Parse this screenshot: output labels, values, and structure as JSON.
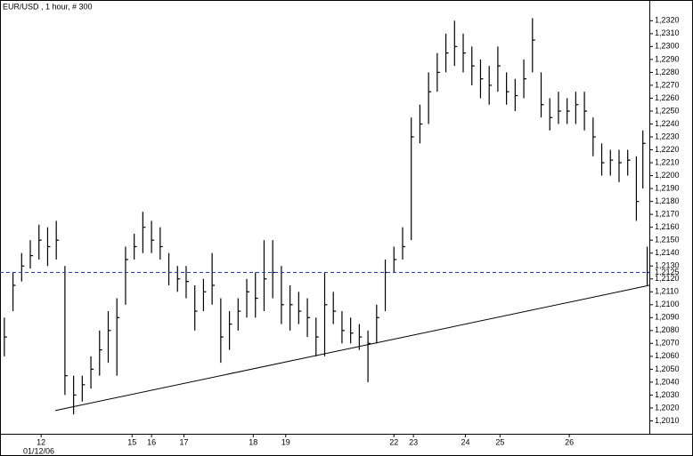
{
  "chart_data": {
    "type": "ohlc",
    "title": "EUR/USD , 1 hour, # 300",
    "start_date": "01/12/06",
    "color": "#000000",
    "x": [
      2,
      6,
      10,
      14,
      18,
      22,
      26,
      30,
      34,
      38,
      42,
      46,
      50,
      54,
      58,
      62,
      66,
      70,
      74,
      78,
      82,
      86,
      90,
      94,
      98,
      102,
      106,
      110,
      114,
      118,
      122,
      126,
      130,
      134,
      138,
      142,
      146,
      150,
      154,
      158,
      162,
      166,
      170,
      174,
      178,
      182,
      186,
      190,
      194,
      198,
      202,
      206,
      210,
      214,
      218,
      222,
      226,
      230,
      234,
      238,
      242,
      246,
      250,
      254,
      258,
      262,
      266,
      270,
      274,
      278,
      282,
      286,
      290,
      294,
      297,
      299
    ],
    "high": [
      1.209,
      1.2125,
      1.214,
      1.215,
      1.2162,
      1.216,
      1.2165,
      1.213,
      1.2045,
      1.2045,
      1.206,
      1.208,
      1.2095,
      1.2105,
      1.2145,
      1.2155,
      1.2172,
      1.2165,
      1.216,
      1.214,
      1.213,
      1.213,
      1.2115,
      1.212,
      1.214,
      1.2105,
      1.2095,
      1.2105,
      1.212,
      1.2125,
      1.215,
      1.215,
      1.213,
      1.2115,
      1.211,
      1.2105,
      1.209,
      1.2125,
      1.211,
      1.2095,
      1.209,
      1.2085,
      1.208,
      1.21,
      1.2135,
      1.2145,
      1.216,
      1.2245,
      1.2255,
      1.228,
      1.2295,
      1.231,
      1.232,
      1.231,
      1.23,
      1.229,
      1.2285,
      1.23,
      1.228,
      1.2275,
      1.229,
      1.2322,
      1.228,
      1.226,
      1.2265,
      1.226,
      1.2265,
      1.2265,
      1.2245,
      1.2225,
      1.222,
      1.222,
      1.222,
      1.2215,
      1.2235,
      1.2145
    ],
    "low": [
      1.206,
      1.2095,
      1.2118,
      1.2128,
      1.2135,
      1.213,
      1.2135,
      1.203,
      1.2015,
      1.2025,
      1.2035,
      1.2045,
      1.2055,
      1.2045,
      1.21,
      1.2135,
      1.214,
      1.214,
      1.2135,
      1.2115,
      1.211,
      1.2105,
      1.208,
      1.2095,
      1.21,
      1.2055,
      1.2065,
      1.208,
      1.209,
      1.209,
      1.2095,
      1.2105,
      1.2085,
      1.208,
      1.2085,
      1.2075,
      1.206,
      1.206,
      1.2085,
      1.207,
      1.207,
      1.2065,
      1.204,
      1.207,
      1.2095,
      1.2125,
      1.2135,
      1.215,
      1.2225,
      1.224,
      1.2265,
      1.228,
      1.2285,
      1.228,
      1.227,
      1.226,
      1.2255,
      1.2265,
      1.2255,
      1.225,
      1.226,
      1.228,
      1.2245,
      1.2235,
      1.224,
      1.224,
      1.224,
      1.2235,
      1.2215,
      1.22,
      1.22,
      1.2195,
      1.22,
      1.2165,
      1.219,
      1.2115
    ],
    "close": [
      1.2075,
      1.2115,
      1.213,
      1.2138,
      1.215,
      1.2145,
      1.215,
      1.2045,
      1.203,
      1.2038,
      1.205,
      1.2065,
      1.208,
      1.209,
      1.2135,
      1.2145,
      1.216,
      1.215,
      1.2145,
      1.2125,
      1.212,
      1.2118,
      1.2095,
      1.211,
      1.2115,
      1.2075,
      1.2085,
      1.2095,
      1.211,
      1.2105,
      1.212,
      1.2125,
      1.21,
      1.21,
      1.2095,
      1.209,
      1.2075,
      1.21,
      1.2095,
      1.208,
      1.2078,
      1.2075,
      1.207,
      1.209,
      1.2125,
      1.2135,
      1.2145,
      1.223,
      1.224,
      1.2265,
      1.228,
      1.2295,
      1.23,
      1.2295,
      1.2285,
      1.2275,
      1.227,
      1.2285,
      1.2265,
      1.2262,
      1.2275,
      1.2305,
      1.2255,
      1.2245,
      1.225,
      1.225,
      1.2255,
      1.225,
      1.223,
      1.221,
      1.2212,
      1.221,
      1.2212,
      1.218,
      1.2225,
      1.2125
    ],
    "last_price": {
      "value": 1.2125,
      "label": "1,2125",
      "color": "#1f3fbf"
    },
    "trendline": {
      "x": [
        25.5,
        300
      ],
      "values": [
        1.2018,
        1.2115
      ]
    },
    "xlim": [
      0,
      300
    ],
    "ylim": [
      1.2,
      1.2334
    ],
    "xticks": [
      {
        "value": 19,
        "label": "12"
      },
      {
        "value": 61,
        "label": "15"
      },
      {
        "value": 70,
        "label": "16"
      },
      {
        "value": 85,
        "label": "17"
      },
      {
        "value": 117,
        "label": "18"
      },
      {
        "value": 132,
        "label": "19"
      },
      {
        "value": 182,
        "label": "22"
      },
      {
        "value": 191,
        "label": "23"
      },
      {
        "value": 215,
        "label": "24"
      },
      {
        "value": 231,
        "label": "25"
      },
      {
        "value": 263,
        "label": "26"
      }
    ],
    "yticks": [
      {
        "value": 1.201,
        "label": "1,2010"
      },
      {
        "value": 1.202,
        "label": "1,2020"
      },
      {
        "value": 1.203,
        "label": "1,2030"
      },
      {
        "value": 1.204,
        "label": "1,2040"
      },
      {
        "value": 1.205,
        "label": "1,2050"
      },
      {
        "value": 1.206,
        "label": "1,2060"
      },
      {
        "value": 1.207,
        "label": "1,2070"
      },
      {
        "value": 1.208,
        "label": "1,2080"
      },
      {
        "value": 1.209,
        "label": "1,2090"
      },
      {
        "value": 1.21,
        "label": "1,2100"
      },
      {
        "value": 1.211,
        "label": "1,2110"
      },
      {
        "value": 1.212,
        "label": "1,2120"
      },
      {
        "value": 1.213,
        "label": "1,2130"
      },
      {
        "value": 1.214,
        "label": "1,2140"
      },
      {
        "value": 1.215,
        "label": "1,2150"
      },
      {
        "value": 1.216,
        "label": "1,2160"
      },
      {
        "value": 1.217,
        "label": "1,2170"
      },
      {
        "value": 1.218,
        "label": "1,2180"
      },
      {
        "value": 1.219,
        "label": "1,2190"
      },
      {
        "value": 1.22,
        "label": "1,2200"
      },
      {
        "value": 1.221,
        "label": "1,2210"
      },
      {
        "value": 1.222,
        "label": "1,2220"
      },
      {
        "value": 1.223,
        "label": "1,2230"
      },
      {
        "value": 1.224,
        "label": "1,2240"
      },
      {
        "value": 1.225,
        "label": "1,2250"
      },
      {
        "value": 1.226,
        "label": "1,2260"
      },
      {
        "value": 1.227,
        "label": "1,2270"
      },
      {
        "value": 1.228,
        "label": "1,2280"
      },
      {
        "value": 1.229,
        "label": "1,2290"
      },
      {
        "value": 1.23,
        "label": "1,2300"
      },
      {
        "value": 1.231,
        "label": "1,2310"
      },
      {
        "value": 1.232,
        "label": "1,2320"
      }
    ]
  }
}
